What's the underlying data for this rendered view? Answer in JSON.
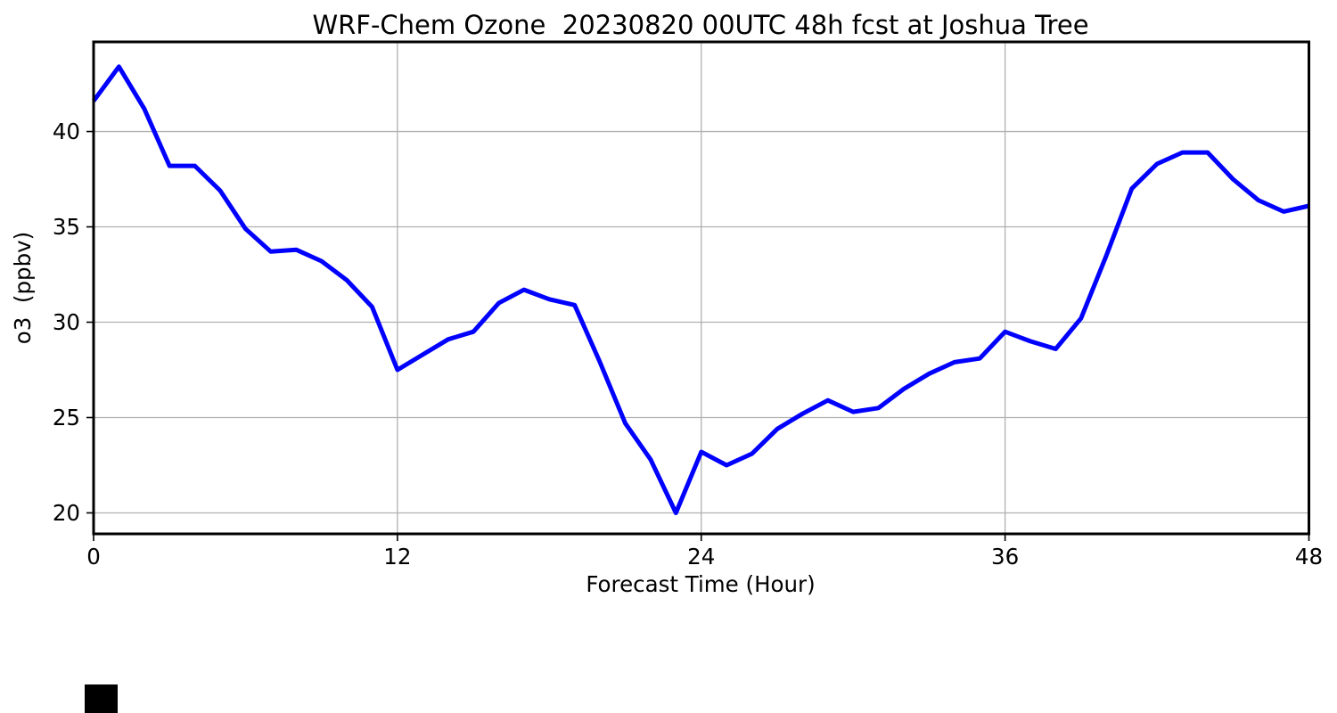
{
  "chart_data": {
    "type": "line",
    "title": "WRF-Chem Ozone  20230820 00UTC 48h fcst at Joshua Tree",
    "xlabel": "Forecast Time (Hour)",
    "ylabel": "o3  (ppbv)",
    "x": [
      0,
      1,
      2,
      3,
      4,
      5,
      6,
      7,
      8,
      9,
      10,
      11,
      12,
      13,
      14,
      15,
      16,
      17,
      18,
      19,
      20,
      21,
      22,
      23,
      24,
      25,
      26,
      27,
      28,
      29,
      30,
      31,
      32,
      33,
      34,
      35,
      36,
      37,
      38,
      39,
      40,
      41,
      42,
      43,
      44,
      45,
      46,
      47,
      48
    ],
    "values": [
      41.6,
      43.4,
      41.2,
      38.2,
      38.2,
      36.9,
      34.9,
      33.7,
      33.8,
      33.2,
      32.2,
      30.8,
      27.5,
      28.3,
      29.1,
      29.5,
      31.0,
      31.7,
      31.2,
      30.9,
      27.9,
      24.7,
      22.8,
      20.0,
      23.2,
      22.5,
      23.1,
      24.4,
      25.2,
      25.9,
      25.3,
      25.5,
      26.5,
      27.3,
      27.9,
      28.1,
      29.5,
      29.0,
      28.6,
      30.2,
      33.5,
      37.0,
      38.3,
      38.9,
      38.9,
      37.5,
      36.4,
      35.8,
      36.1
    ],
    "xticks": [
      0,
      12,
      24,
      36,
      48
    ],
    "yticks": [
      20,
      25,
      30,
      35,
      40
    ],
    "xlim": [
      0,
      48
    ],
    "ylim": [
      18.9,
      44.7
    ],
    "line_color": "#0000ff",
    "grid": true,
    "grid_color": "#b0b0b0",
    "axis_color": "#000000",
    "legend": "none"
  }
}
